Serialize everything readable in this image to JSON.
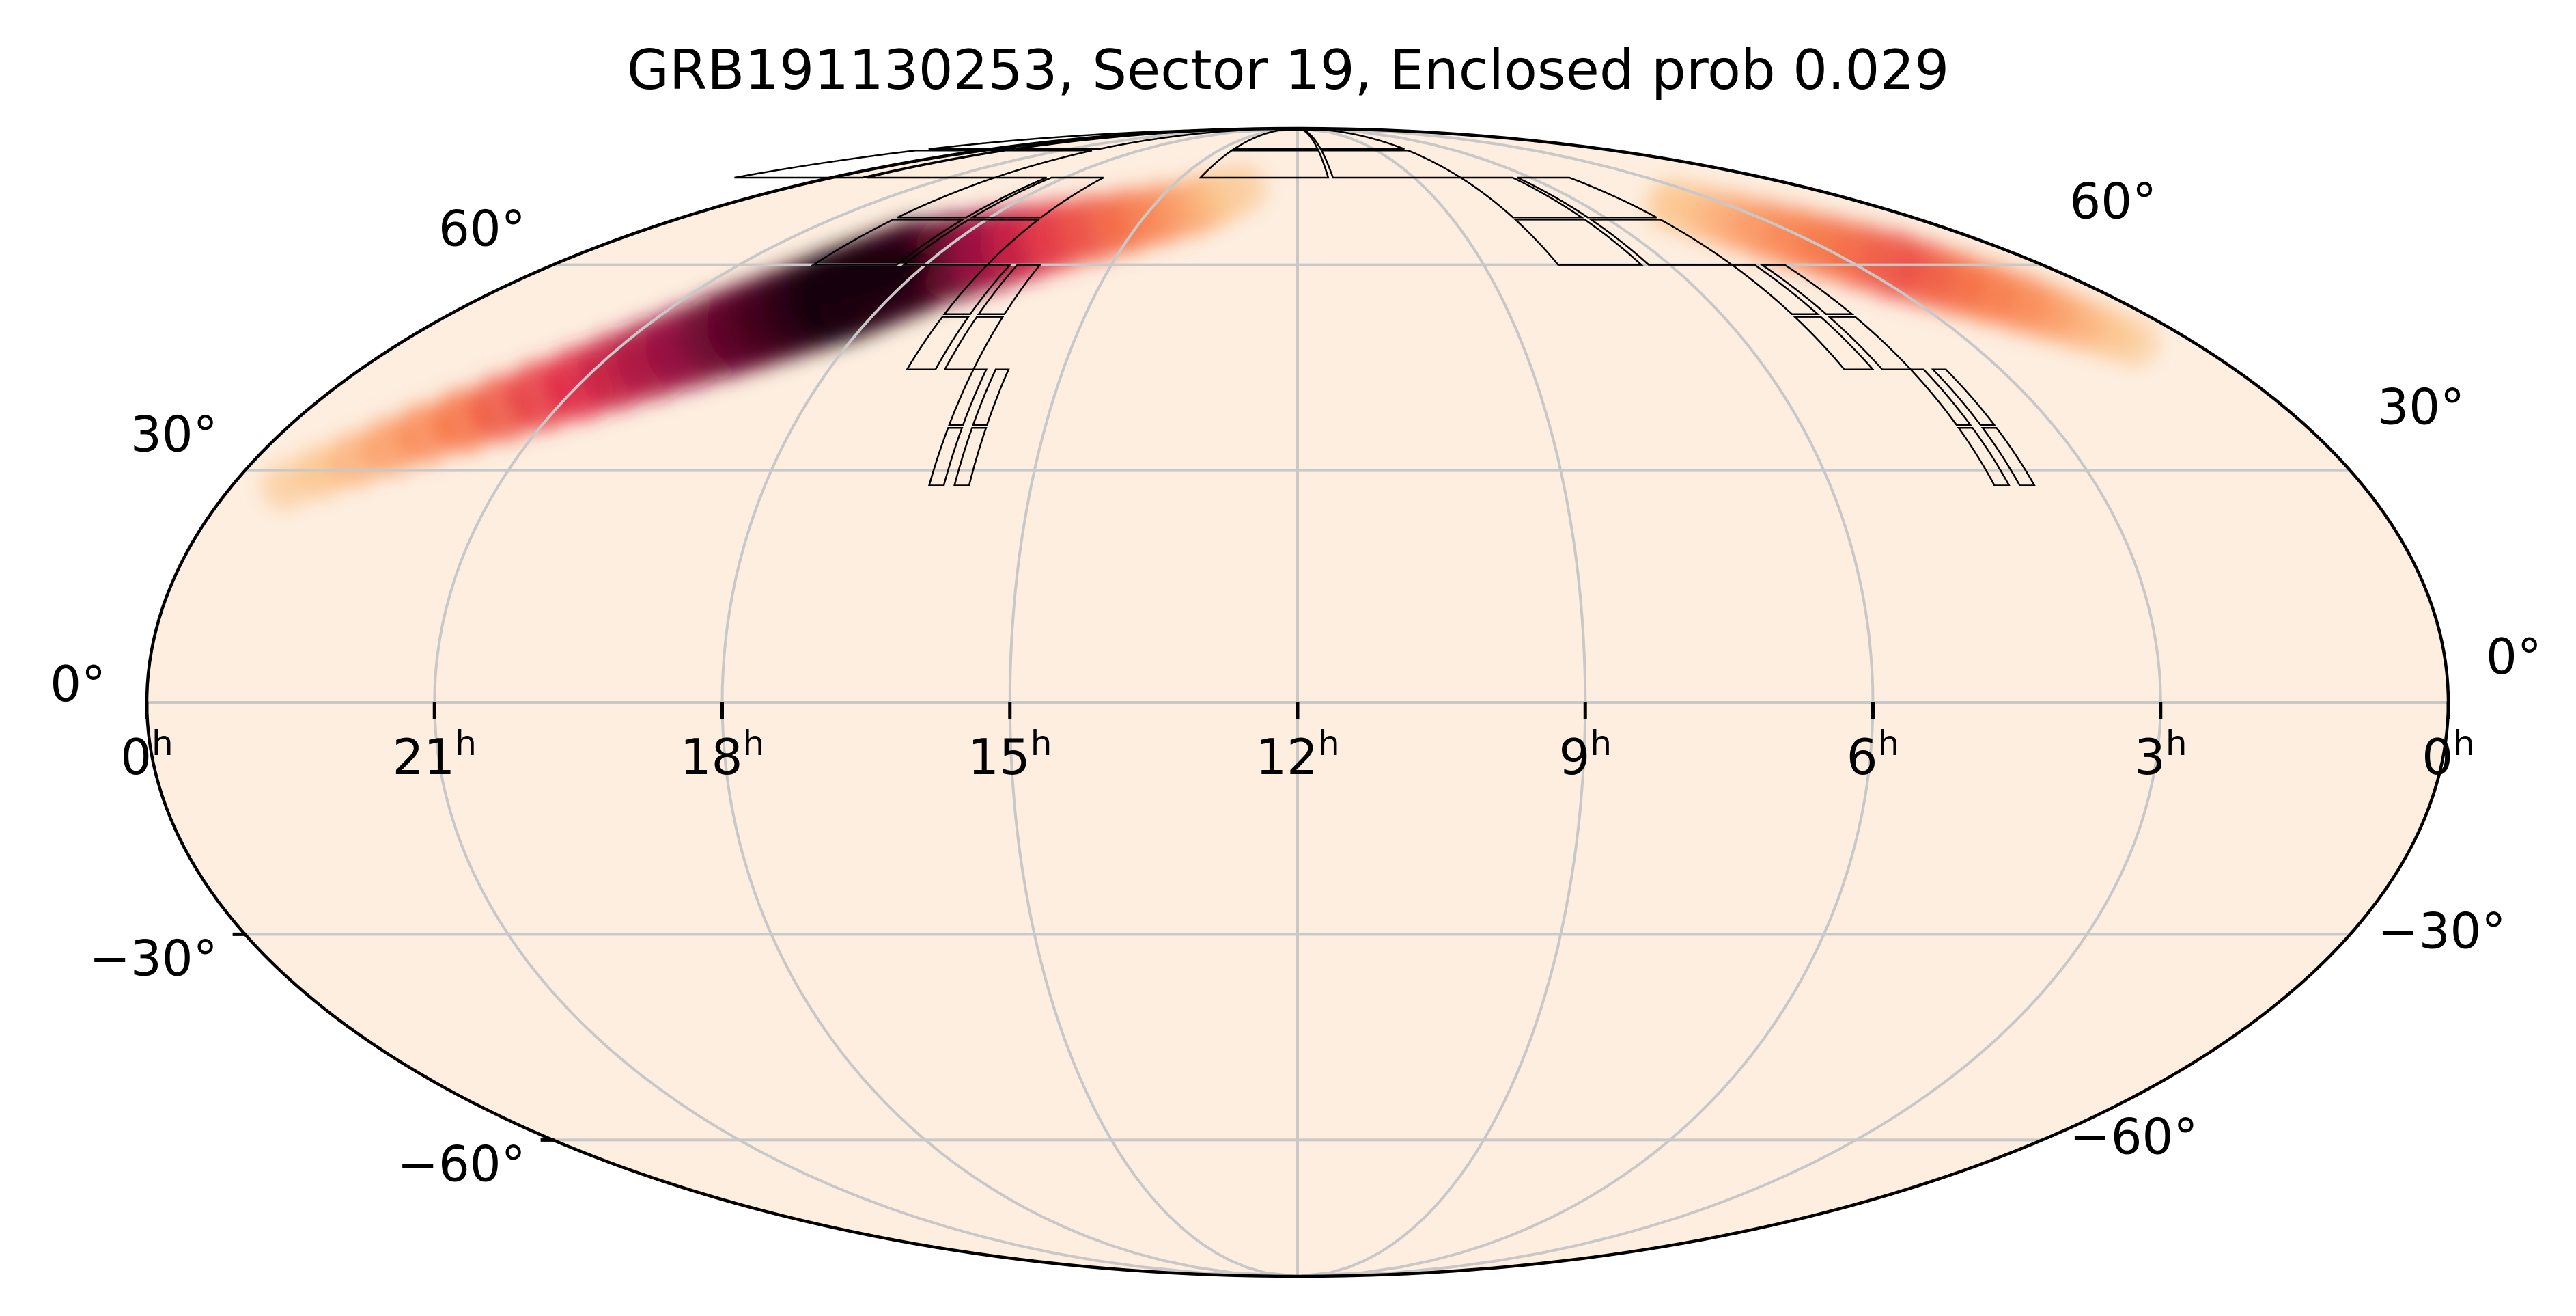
{
  "chart_data": {
    "type": "heatmap",
    "projection": "mollweide",
    "title": "GRB191130253, Sector 19, Enclosed prob 0.029",
    "ra_ticks": [
      {
        "hours": 24,
        "label": "0",
        "sup": "h"
      },
      {
        "hours": 21,
        "label": "21",
        "sup": "h"
      },
      {
        "hours": 18,
        "label": "18",
        "sup": "h"
      },
      {
        "hours": 15,
        "label": "15",
        "sup": "h"
      },
      {
        "hours": 12,
        "label": "12",
        "sup": "h"
      },
      {
        "hours": 9,
        "label": "9",
        "sup": "h"
      },
      {
        "hours": 6,
        "label": "6",
        "sup": "h"
      },
      {
        "hours": 3,
        "label": "3",
        "sup": "h"
      },
      {
        "hours": 0,
        "label": "0",
        "sup": "h"
      }
    ],
    "dec_ticks": [
      {
        "dec": 60,
        "label": "60°"
      },
      {
        "dec": 30,
        "label": "30°"
      },
      {
        "dec": 0,
        "label": "0°"
      },
      {
        "dec": -30,
        "label": "−30°"
      },
      {
        "dec": -60,
        "label": "−60°"
      }
    ],
    "ra_range_hours": [
      0,
      24
    ],
    "ra_direction": "increasing-leftward",
    "dec_range": [
      -90,
      90
    ],
    "grid": true,
    "colormap": "sequential light-peach to black",
    "background_color": "#fdeee0",
    "probability_peak": {
      "ra_hours": 18.6,
      "dec": 58
    },
    "probability_arc": {
      "dec": [
        28,
        35,
        42,
        49,
        55,
        60,
        65,
        70,
        75
      ],
      "ra_hours": [
        23.4,
        22.3,
        21.0,
        19.8,
        18.8,
        18.1,
        16.3,
        14.2,
        13.0
      ],
      "intensity": [
        0.15,
        0.35,
        0.6,
        0.85,
        1.0,
        0.95,
        0.55,
        0.3,
        0.1
      ]
    },
    "probability_wrap_arc": {
      "dec": [
        48,
        54,
        60,
        66,
        72
      ],
      "ra_hours": [
        0.8,
        1.5,
        2.4,
        3.4,
        4.4
      ],
      "intensity": [
        0.15,
        0.35,
        0.5,
        0.35,
        0.15
      ]
    },
    "footprint": {
      "name": "TESS Sector 19",
      "cameras": [
        {
          "ra": [
            3.7,
            4.15
          ],
          "dec": [
            28,
            44
          ]
        },
        {
          "ra": [
            4.15,
            5.0
          ],
          "dec": [
            44,
            60
          ]
        },
        {
          "ra": [
            5.0,
            7.8
          ],
          "dec": [
            60,
            76
          ]
        },
        {
          "ra": [
            7.8,
            14.5
          ],
          "dec": [
            76,
            89
          ]
        }
      ],
      "pointing_ra_hours": [
        4.85,
        5.4,
        7.0,
        12.0
      ],
      "pointing_dec": [
        36,
        52,
        68,
        83
      ]
    }
  }
}
